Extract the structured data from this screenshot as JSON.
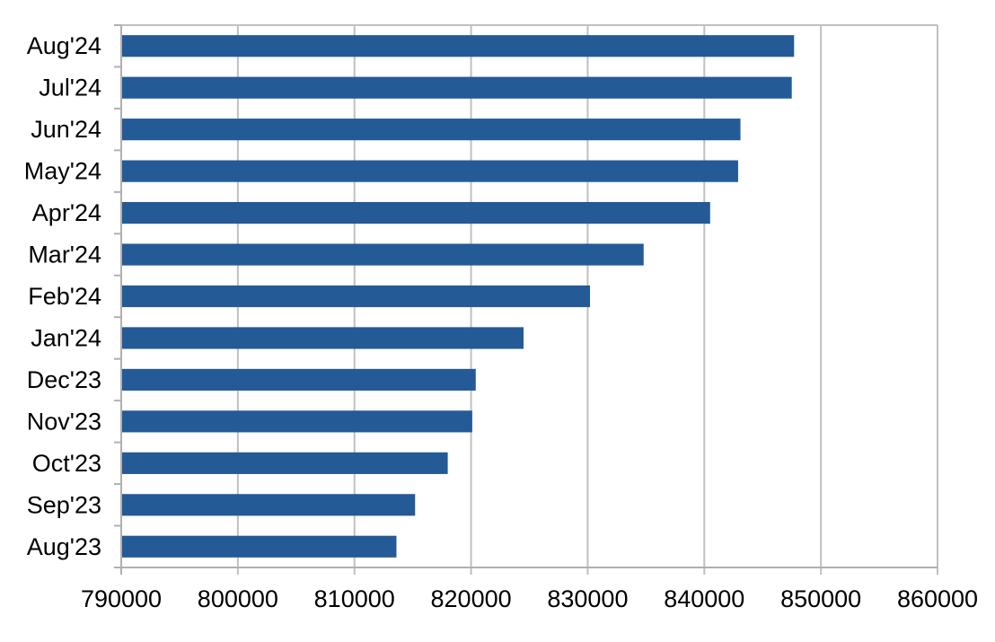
{
  "chart_data": {
    "type": "bar",
    "orientation": "horizontal",
    "categories": [
      "Aug'23",
      "Sep'23",
      "Oct'23",
      "Nov'23",
      "Dec'23",
      "Jan'24",
      "Feb'24",
      "Mar'24",
      "Apr'24",
      "May'24",
      "Jun'24",
      "Jul'24",
      "Aug'24"
    ],
    "values": [
      813600,
      815200,
      818000,
      820100,
      820400,
      824500,
      830200,
      834800,
      840500,
      842900,
      843100,
      847500,
      847700
    ],
    "title": "",
    "xlabel": "",
    "ylabel": "",
    "xlim": [
      790000,
      860000
    ],
    "xticks": [
      "790000",
      "800000",
      "810000",
      "820000",
      "830000",
      "840000",
      "850000",
      "860000"
    ],
    "grid": true,
    "legend": "none",
    "colors": {
      "bar": "#245A96",
      "grid": "#C0C0C0",
      "axis": "#B0B0B0"
    }
  }
}
